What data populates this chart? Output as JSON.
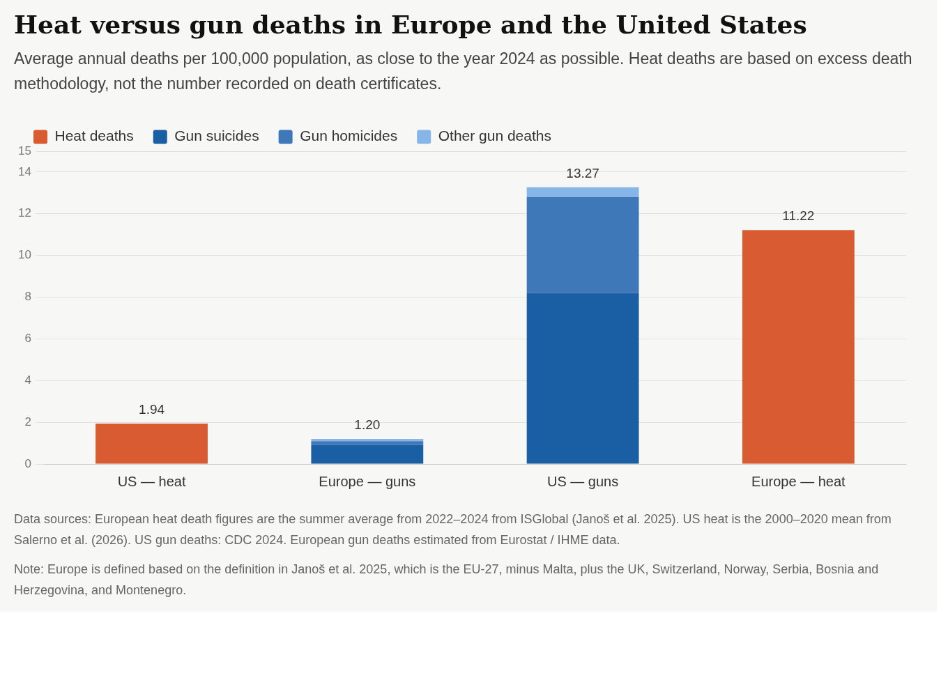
{
  "chart_data": {
    "type": "bar",
    "title": "Heat versus gun deaths in Europe and the United States",
    "subtitle": "Average annual deaths per 100,000 population, as close to the year 2024 as possible. Heat deaths are based on excess death methodology, not the number recorded on death certificates.",
    "categories": [
      "US — heat",
      "Europe — guns",
      "US — guns",
      "Europe — heat"
    ],
    "series": [
      {
        "name": "Heat deaths",
        "color": "#d95b31",
        "values": [
          1.94,
          null,
          null,
          11.22
        ]
      },
      {
        "name": "Gun suicides",
        "color": "#1a5ea3",
        "values": [
          null,
          0.91,
          8.2,
          null
        ]
      },
      {
        "name": "Gun homicides",
        "color": "#3f78b8",
        "values": [
          null,
          0.18,
          4.6,
          null
        ]
      },
      {
        "name": "Other gun deaths",
        "color": "#86b6e8",
        "values": [
          null,
          0.11,
          0.47,
          null
        ]
      }
    ],
    "stacked": true,
    "totals": [
      "1.94",
      "1.20",
      "13.27",
      "11.22"
    ],
    "ylim": [
      0,
      15
    ],
    "yticks": [
      0,
      2,
      4,
      6,
      8,
      10,
      12,
      14,
      15
    ],
    "grid": "y",
    "legend": "top left",
    "annotations": [
      "Data sources: European heat death figures are the summer average from 2022–2024 from ISGlobal (Janoš et al. 2025). US heat is the 2000–2020 mean from Salerno et al. (2026). US gun deaths: CDC 2024. European gun deaths estimated from Eurostat / IHME data.",
      "Note: Europe is defined based on the definition in Janoš et al. 2025, which is the EU-27, minus Malta, plus the UK, Switzerland, Norway, Serbia, Bosnia and Herzegovina, and Montenegro."
    ]
  }
}
